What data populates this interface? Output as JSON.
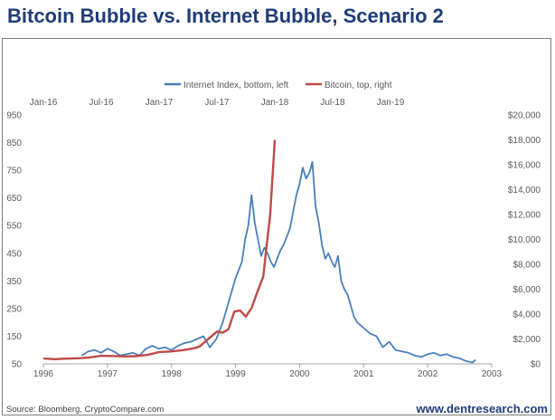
{
  "title": "Bitcoin Bubble vs. Internet Bubble, Scenario 2",
  "source": "Source: Bloomberg, CryptoCompare.com",
  "website": "www.dentresearch.com",
  "chart_data": {
    "type": "line",
    "legend_position": "top-center",
    "grid": false,
    "colors": {
      "internet": "#4a7ebb",
      "bitcoin": "#be4b48"
    },
    "x_bottom": {
      "label": "",
      "ticks": [
        "1996",
        "1997",
        "1998",
        "1999",
        "2000",
        "2001",
        "2002",
        "2003"
      ],
      "range": [
        1996,
        2003
      ]
    },
    "x_top": {
      "label": "",
      "ticks": [
        "Jan-16",
        "Jul-16",
        "Jan-17",
        "Jul-17",
        "Jan-18",
        "Jul-18",
        "Jan-19"
      ],
      "range": [
        2016.0,
        2019.5
      ]
    },
    "y_left": {
      "label": "",
      "ticks": [
        "950",
        "850",
        "750",
        "650",
        "550",
        "450",
        "350",
        "250",
        "150",
        "50"
      ],
      "range": [
        50,
        950
      ]
    },
    "y_right": {
      "label": "",
      "ticks": [
        "$20,000",
        "$18,000",
        "$16,000",
        "$14,000",
        "$12,000",
        "$10,000",
        "$8,000",
        "$6,000",
        "$4,000",
        "$2,000",
        "$0"
      ],
      "range": [
        0,
        20000
      ]
    },
    "series": [
      {
        "name": "Internet Index, bottom, left",
        "axis": "bottom-left",
        "x": [
          1996.6,
          1996.7,
          1996.8,
          1996.9,
          1997.0,
          1997.1,
          1997.2,
          1997.3,
          1997.4,
          1997.5,
          1997.6,
          1997.7,
          1997.8,
          1997.9,
          1998.0,
          1998.1,
          1998.2,
          1998.3,
          1998.4,
          1998.5,
          1998.6,
          1998.7,
          1998.8,
          1998.9,
          1999.0,
          1999.1,
          1999.15,
          1999.2,
          1999.25,
          1999.3,
          1999.35,
          1999.4,
          1999.45,
          1999.5,
          1999.55,
          1999.6,
          1999.65,
          1999.7,
          1999.75,
          1999.8,
          1999.85,
          1999.9,
          1999.95,
          2000.0,
          2000.05,
          2000.1,
          2000.15,
          2000.2,
          2000.25,
          2000.3,
          2000.35,
          2000.4,
          2000.45,
          2000.5,
          2000.55,
          2000.6,
          2000.65,
          2000.7,
          2000.75,
          2000.8,
          2000.85,
          2000.9,
          2000.95,
          2001.0,
          2001.1,
          2001.2,
          2001.3,
          2001.4,
          2001.5,
          2001.6,
          2001.7,
          2001.8,
          2001.9,
          2002.0,
          2002.1,
          2002.2,
          2002.3,
          2002.4,
          2002.5,
          2002.6,
          2002.7,
          2002.75
        ],
        "values": [
          80,
          95,
          100,
          90,
          105,
          95,
          80,
          85,
          90,
          80,
          105,
          115,
          105,
          110,
          100,
          115,
          125,
          130,
          140,
          150,
          110,
          140,
          200,
          280,
          360,
          420,
          500,
          550,
          660,
          560,
          500,
          440,
          470,
          450,
          420,
          400,
          430,
          460,
          480,
          510,
          540,
          600,
          660,
          700,
          760,
          720,
          740,
          780,
          620,
          560,
          480,
          430,
          450,
          420,
          400,
          440,
          350,
          320,
          300,
          260,
          220,
          200,
          190,
          180,
          160,
          150,
          110,
          130,
          100,
          95,
          90,
          80,
          75,
          85,
          90,
          80,
          85,
          75,
          70,
          60,
          55,
          65
        ]
      },
      {
        "name": "Bitcoin, top, right",
        "axis": "top-right",
        "x": [
          2016.0,
          2016.1,
          2016.2,
          2016.3,
          2016.4,
          2016.5,
          2016.6,
          2016.7,
          2016.8,
          2016.9,
          2017.0,
          2017.1,
          2017.2,
          2017.3,
          2017.35,
          2017.4,
          2017.45,
          2017.5,
          2017.55,
          2017.6,
          2017.65,
          2017.7,
          2017.75,
          2017.8,
          2017.85,
          2017.9,
          2017.93,
          2017.96,
          2018.0
        ],
        "values": [
          430,
          380,
          420,
          450,
          520,
          650,
          630,
          600,
          620,
          720,
          950,
          1000,
          1100,
          1250,
          1400,
          1800,
          2200,
          2600,
          2500,
          2800,
          4200,
          4300,
          3800,
          4500,
          5800,
          7000,
          9500,
          12000,
          18000
        ]
      }
    ]
  }
}
